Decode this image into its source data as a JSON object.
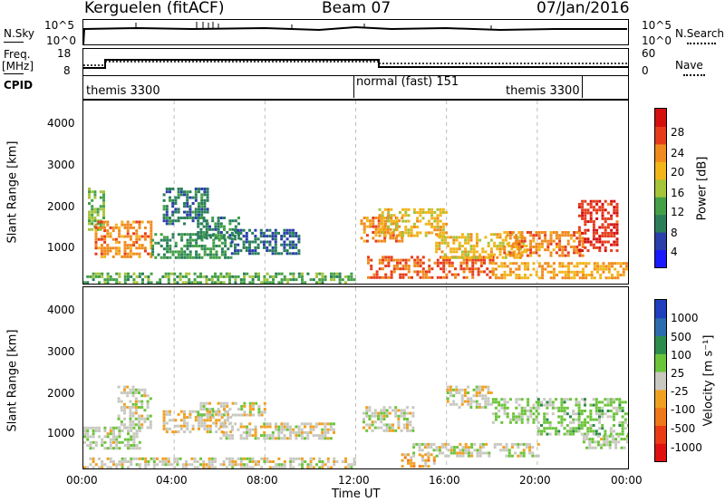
{
  "header": {
    "station": "Kerguelen (fitACF)",
    "beam": "Beam 07",
    "date": "07/Jan/2016"
  },
  "top_panel": {
    "left_label": "N.Sky",
    "right_label": "N.Search",
    "left_ticks": [
      "10^5",
      "10^0"
    ],
    "right_ticks": [
      "10^5",
      "10^0"
    ]
  },
  "freq_panel": {
    "left_label_1": "Freq.",
    "left_label_2": "[MHz]",
    "right_label": "Nave",
    "left_ticks": [
      "18",
      "8"
    ],
    "right_ticks": [
      "60",
      "0"
    ]
  },
  "cpid": {
    "label": "CPID",
    "segments": [
      "themis 3300",
      "normal (fast) 151",
      "themis 3300"
    ]
  },
  "time_axis": {
    "ticks": [
      "00:00",
      "04:00",
      "08:00",
      "12:00",
      "16:00",
      "20:00",
      "00:00"
    ],
    "label": "Time UT"
  },
  "power_panel": {
    "ylabel": "Slant Range [km]",
    "yticks": [
      "4000",
      "3000",
      "2000",
      "1000"
    ],
    "colorbar_label": "Power [dB]",
    "colorbar_ticks": [
      "28",
      "24",
      "20",
      "16",
      "12",
      "8",
      "4"
    ],
    "colors": [
      "#1a1aff",
      "#2a3faa",
      "#2a7f5a",
      "#43a047",
      "#a5c43a",
      "#f2b51a",
      "#f08a1e",
      "#e63c1b",
      "#d4100f"
    ]
  },
  "velocity_panel": {
    "ylabel": "Slant Range [km]",
    "yticks": [
      "4000",
      "3000",
      "2000",
      "1000"
    ],
    "colorbar_label": "Velocity [m s⁻¹]",
    "colorbar_ticks": [
      "1000",
      "500",
      "100",
      "25",
      "-25",
      "-100",
      "-500",
      "-1000"
    ],
    "colors": [
      "#1f3fbf",
      "#2c6cae",
      "#2c8c4a",
      "#6cc43a",
      "#c8c8c0",
      "#f0a020",
      "#ef7818",
      "#ea3c14",
      "#e01010"
    ]
  },
  "chart_data": [
    {
      "type": "heatmap",
      "title": "Beam 07",
      "xlabel": "Time UT",
      "ylabel": "Slant Range [km]",
      "xlim": [
        "00:00",
        "24:00"
      ],
      "ylim": [
        180,
        4600
      ],
      "colorbar": "Power [dB]",
      "color_range": [
        0,
        30
      ],
      "echo_regions": [
        {
          "t0": 0.2,
          "t1": 0.9,
          "r0": 1500,
          "r1": 2500,
          "value": 14
        },
        {
          "t0": 0.5,
          "t1": 3.0,
          "r0": 800,
          "r1": 1700,
          "value": 22
        },
        {
          "t0": 3.0,
          "t1": 6.5,
          "r0": 800,
          "r1": 1400,
          "value": 10
        },
        {
          "t0": 3.5,
          "t1": 5.5,
          "r0": 1600,
          "r1": 2500,
          "value": 8
        },
        {
          "t0": 5.0,
          "t1": 6.8,
          "r0": 1300,
          "r1": 1800,
          "value": 9
        },
        {
          "t0": 6.5,
          "t1": 9.5,
          "r0": 900,
          "r1": 1500,
          "value": 7
        },
        {
          "t0": 0.0,
          "t1": 12.0,
          "r0": 200,
          "r1": 450,
          "value": 12
        },
        {
          "t0": 12.2,
          "t1": 14.0,
          "r0": 1200,
          "r1": 1800,
          "value": 22
        },
        {
          "t0": 12.5,
          "t1": 18.0,
          "r0": 350,
          "r1": 850,
          "value": 24
        },
        {
          "t0": 13.0,
          "t1": 16.0,
          "r0": 1300,
          "r1": 2000,
          "value": 18
        },
        {
          "t0": 15.5,
          "t1": 19.5,
          "r0": 800,
          "r1": 1400,
          "value": 18
        },
        {
          "t0": 18.5,
          "t1": 22.0,
          "r0": 850,
          "r1": 1450,
          "value": 22
        },
        {
          "t0": 21.8,
          "t1": 23.5,
          "r0": 1000,
          "r1": 2200,
          "value": 26
        },
        {
          "t0": 18.0,
          "t1": 24.0,
          "r0": 300,
          "r1": 700,
          "value": 20
        }
      ]
    },
    {
      "type": "heatmap",
      "xlabel": "Time UT",
      "ylabel": "Slant Range [km]",
      "xlim": [
        "00:00",
        "24:00"
      ],
      "ylim": [
        180,
        4600
      ],
      "colorbar": "Velocity [m s⁻¹]",
      "color_range": [
        -1000,
        1000
      ],
      "echo_regions": [
        {
          "t0": 0.0,
          "t1": 2.5,
          "r0": 700,
          "r1": 1200,
          "value": 60
        },
        {
          "t0": 1.5,
          "t1": 3.0,
          "r0": 1200,
          "r1": 2200,
          "value": 40
        },
        {
          "t0": 3.5,
          "t1": 6.5,
          "r0": 1100,
          "r1": 1600,
          "value": -60
        },
        {
          "t0": 5.0,
          "t1": 8.0,
          "r0": 1450,
          "r1": 1800,
          "value": 0
        },
        {
          "t0": 6.0,
          "t1": 11.0,
          "r0": 900,
          "r1": 1300,
          "value": 0
        },
        {
          "t0": 0.0,
          "t1": 12.0,
          "r0": 200,
          "r1": 450,
          "value": 0
        },
        {
          "t0": 12.3,
          "t1": 14.5,
          "r0": 1100,
          "r1": 1700,
          "value": 0
        },
        {
          "t0": 14.0,
          "t1": 15.5,
          "r0": 250,
          "r1": 550,
          "value": -200
        },
        {
          "t0": 16.0,
          "t1": 18.0,
          "r0": 1700,
          "r1": 2200,
          "value": 0
        },
        {
          "t0": 18.0,
          "t1": 20.0,
          "r0": 1300,
          "r1": 1900,
          "value": 150
        },
        {
          "t0": 20.0,
          "t1": 24.0,
          "r0": 1000,
          "r1": 1900,
          "value": 200
        },
        {
          "t0": 22.0,
          "t1": 24.0,
          "r0": 650,
          "r1": 1000,
          "value": 60
        },
        {
          "t0": 14.5,
          "t1": 20.0,
          "r0": 500,
          "r1": 800,
          "value": 0
        }
      ]
    }
  ]
}
